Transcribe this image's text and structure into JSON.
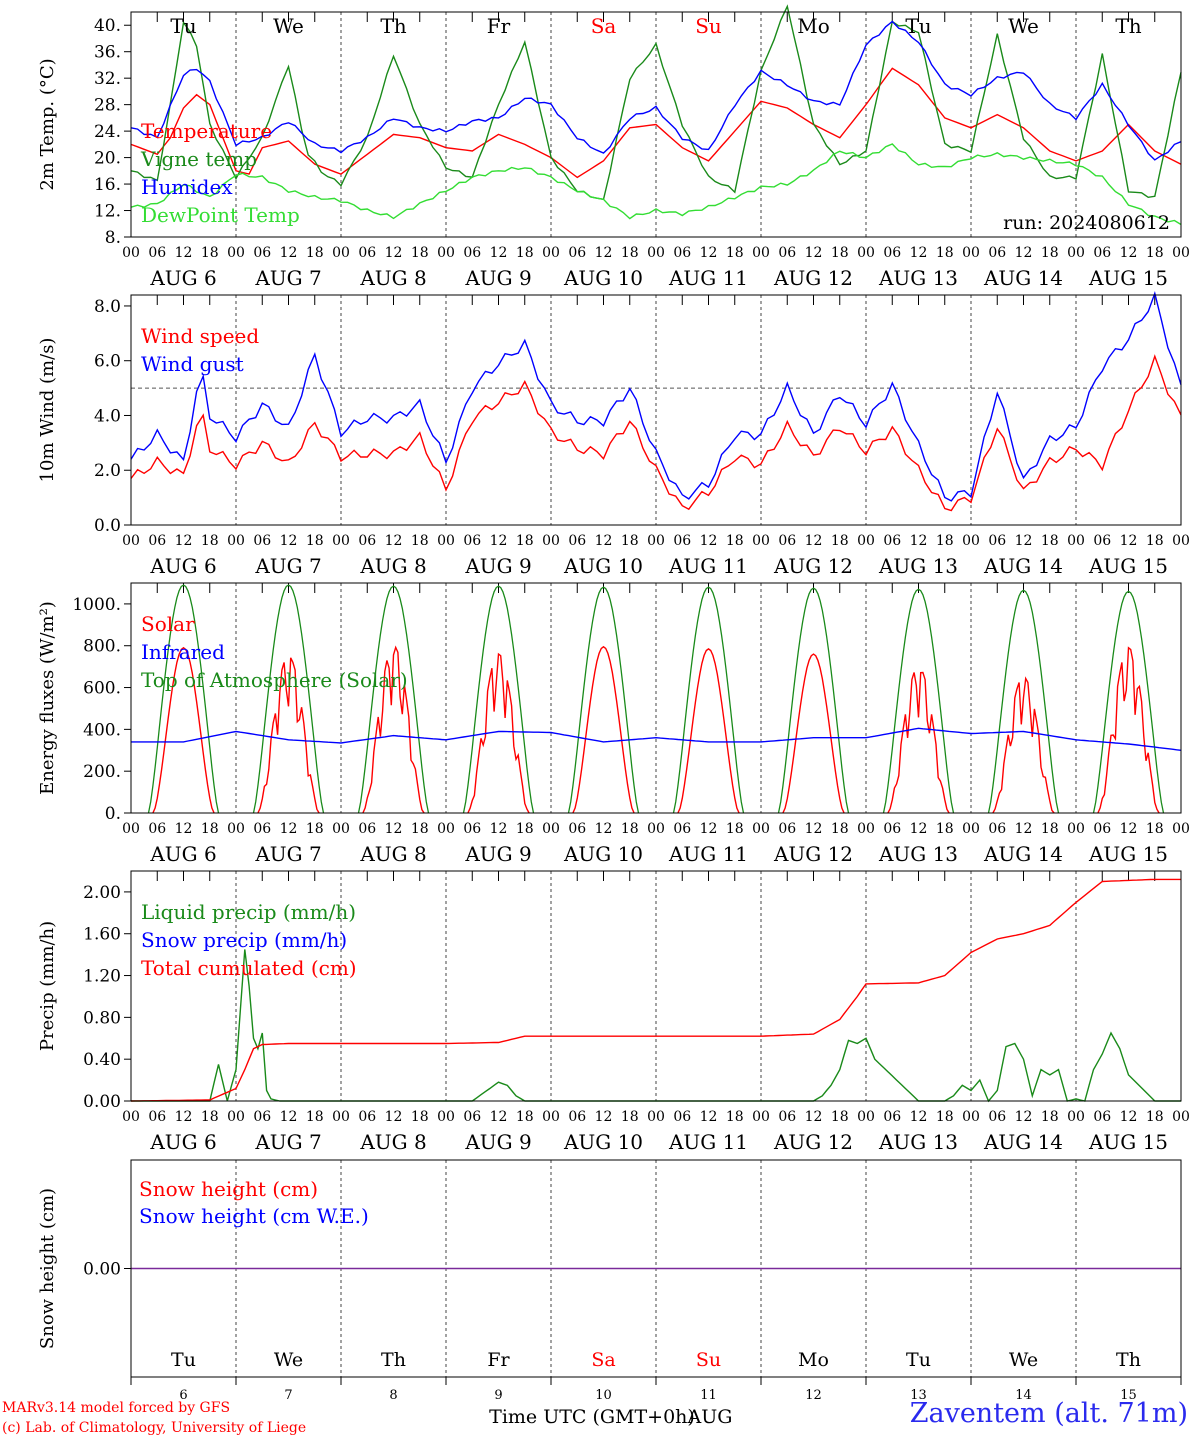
{
  "header": {
    "run_label": "run: 2024080612"
  },
  "footer": {
    "model_credit": "MARv3.14 model forced by GFS",
    "lab_credit": "(c) Lab. of Climatology, University of Liege",
    "time_label": "Time UTC (GMT+0h)",
    "month_label": "AUG",
    "station": "Zaventem (alt. 71m)"
  },
  "colors": {
    "red": "#ff0000",
    "darkgreen": "#1a8a1a",
    "blue": "#0000ff",
    "lightgreen": "#33dd33",
    "purple": "#7a2a9a",
    "weekend": "#ff0000",
    "weekday": "#000000"
  },
  "days": [
    {
      "weekday": "Tu",
      "date": "AUG 6",
      "num": "6",
      "weekend": false
    },
    {
      "weekday": "We",
      "date": "AUG 7",
      "num": "7",
      "weekend": false
    },
    {
      "weekday": "Th",
      "date": "AUG 8",
      "num": "8",
      "weekend": false
    },
    {
      "weekday": "Fr",
      "date": "AUG 9",
      "num": "9",
      "weekend": false
    },
    {
      "weekday": "Sa",
      "date": "AUG 10",
      "num": "10",
      "weekend": true
    },
    {
      "weekday": "Su",
      "date": "AUG 11",
      "num": "11",
      "weekend": true
    },
    {
      "weekday": "Mo",
      "date": "AUG 12",
      "num": "12",
      "weekend": false
    },
    {
      "weekday": "Tu",
      "date": "AUG 13",
      "num": "13",
      "weekend": false
    },
    {
      "weekday": "We",
      "date": "AUG 14",
      "num": "14",
      "weekend": false
    },
    {
      "weekday": "Th",
      "date": "AUG 15",
      "num": "15",
      "weekend": false
    }
  ],
  "hour_ticks": [
    "00",
    "06",
    "12",
    "18"
  ],
  "chart_data": [
    {
      "type": "line",
      "id": "temp",
      "ylabel": "2m Temp. (°C)",
      "ylim": [
        8,
        42
      ],
      "yticks": [
        8,
        12,
        16,
        20,
        24,
        28,
        32,
        36,
        40
      ],
      "ytick_labels": [
        "8.",
        "12.",
        "16.",
        "20.",
        "24.",
        "28.",
        "32.",
        "36.",
        "40."
      ],
      "legend": [
        {
          "name": "Temperature",
          "color": "red"
        },
        {
          "name": "Vigne temp",
          "color": "darkgreen"
        },
        {
          "name": "Humidex",
          "color": "blue"
        },
        {
          "name": "DewPoint Temp",
          "color": "lightgreen"
        }
      ],
      "series": [
        {
          "name": "Temperature",
          "color": "red",
          "x": [
            0,
            6,
            9,
            12,
            15,
            18,
            24,
            27,
            30,
            36,
            42,
            48,
            54,
            60,
            66,
            72,
            78,
            84,
            90,
            96,
            102,
            108,
            114,
            120,
            126,
            132,
            138,
            144,
            150,
            156,
            162,
            168,
            174,
            180,
            186,
            192,
            198,
            204,
            210,
            216,
            222,
            228,
            234,
            240
          ],
          "y": [
            22,
            20.5,
            23,
            27.5,
            29.5,
            28,
            18,
            17.5,
            21.5,
            22.5,
            19,
            17.5,
            20.5,
            23.5,
            23,
            21.5,
            21,
            23.5,
            22,
            20,
            17,
            19.5,
            24.5,
            25,
            21.5,
            19.5,
            24,
            28.5,
            27.5,
            25,
            23,
            28,
            33.5,
            31,
            26,
            24.5,
            26.5,
            24.5,
            21,
            19.5,
            21,
            25,
            21,
            19
          ]
        },
        {
          "name": "Vigne temp",
          "color": "darkgreen",
          "x": [
            0,
            6,
            9,
            12,
            15,
            18,
            24,
            30,
            36,
            40,
            44,
            48,
            54,
            60,
            66,
            72,
            78,
            84,
            90,
            96,
            102,
            108,
            114,
            120,
            126,
            132,
            138,
            144,
            150,
            156,
            162,
            168,
            174,
            180,
            186,
            192,
            198,
            204,
            210,
            216,
            222,
            228,
            234,
            240
          ],
          "y": [
            18,
            16.5,
            28,
            40.5,
            37,
            25,
            17,
            23,
            34,
            21,
            17.5,
            16,
            23,
            35.5,
            25,
            18.5,
            17,
            28,
            37.5,
            20,
            15,
            13.5,
            32,
            37,
            25,
            17,
            15,
            33,
            43,
            25,
            19,
            21,
            40.5,
            39,
            22,
            21,
            38.5,
            23,
            17,
            17,
            35.5,
            15,
            14,
            33
          ]
        },
        {
          "name": "Humidex",
          "color": "blue",
          "x": [
            0,
            6,
            12,
            15,
            18,
            24,
            30,
            36,
            42,
            48,
            54,
            60,
            66,
            72,
            78,
            84,
            90,
            96,
            102,
            108,
            114,
            120,
            126,
            132,
            138,
            144,
            150,
            156,
            162,
            168,
            174,
            180,
            186,
            192,
            198,
            204,
            210,
            216,
            222,
            228,
            234,
            240
          ],
          "y": [
            24.5,
            23,
            32.5,
            33.5,
            31.5,
            22,
            23,
            25.5,
            22,
            21,
            23,
            26,
            24.5,
            24,
            25.5,
            26,
            29,
            28,
            23,
            20.5,
            26,
            27.5,
            23,
            21,
            28,
            33,
            31,
            28.5,
            28,
            37,
            40.5,
            37.5,
            31,
            29.5,
            32,
            33,
            28,
            26,
            31,
            25,
            19.5,
            22.5
          ]
        },
        {
          "name": "DewPoint Temp",
          "color": "lightgreen",
          "x": [
            0,
            6,
            12,
            18,
            24,
            30,
            36,
            42,
            48,
            54,
            60,
            66,
            72,
            78,
            84,
            90,
            96,
            102,
            108,
            114,
            120,
            126,
            132,
            138,
            144,
            150,
            156,
            162,
            168,
            174,
            180,
            186,
            192,
            198,
            204,
            210,
            216,
            222,
            228,
            234,
            240
          ],
          "y": [
            12.5,
            13,
            16,
            14,
            17.5,
            17,
            15,
            14,
            13.5,
            12,
            11,
            13,
            15,
            17,
            18,
            18.5,
            17,
            15,
            13.5,
            11,
            12,
            11.5,
            12.5,
            14,
            15.5,
            16,
            18,
            21,
            20,
            22,
            19,
            18.5,
            20,
            20.5,
            20,
            19.5,
            19,
            17,
            13,
            11,
            10
          ]
        }
      ]
    },
    {
      "type": "line",
      "id": "wind",
      "ylabel": "10m Wind (m/s)",
      "ylim": [
        0,
        8.4
      ],
      "yticks": [
        0,
        2,
        4,
        6,
        8
      ],
      "ytick_labels": [
        "0.0",
        "2.0",
        "4.0",
        "6.0",
        "8.0"
      ],
      "reference_line": 5,
      "legend": [
        {
          "name": "Wind speed",
          "color": "red"
        },
        {
          "name": "Wind gust",
          "color": "blue"
        }
      ],
      "series": [
        {
          "name": "Wind speed",
          "color": "red",
          "x": [
            0,
            6,
            12,
            16,
            18,
            24,
            30,
            36,
            42,
            48,
            54,
            60,
            66,
            72,
            78,
            84,
            90,
            96,
            102,
            108,
            114,
            120,
            126,
            132,
            138,
            144,
            150,
            156,
            162,
            168,
            174,
            180,
            186,
            192,
            198,
            204,
            210,
            216,
            222,
            228,
            234,
            240
          ],
          "y": [
            1.7,
            2.3,
            1.8,
            4.2,
            2.8,
            2.2,
            3,
            2.2,
            3.7,
            2.5,
            2.6,
            2.6,
            3.2,
            1.3,
            3.9,
            4.5,
            5.1,
            3.4,
            2.8,
            2.6,
            3.8,
            2,
            0.6,
            1.2,
            2.5,
            2.2,
            3.6,
            2.5,
            3.6,
            2.7,
            3.5,
            2,
            0.6,
            1,
            3.6,
            1.2,
            2.3,
            2.8,
            2.2,
            4.2,
            6,
            3.9
          ]
        },
        {
          "name": "Wind gust",
          "color": "blue",
          "x": [
            0,
            6,
            12,
            16,
            18,
            24,
            30,
            36,
            42,
            48,
            54,
            60,
            66,
            72,
            78,
            84,
            90,
            96,
            102,
            108,
            114,
            120,
            126,
            132,
            138,
            144,
            150,
            156,
            162,
            168,
            174,
            180,
            186,
            192,
            198,
            204,
            210,
            216,
            222,
            228,
            234,
            240
          ],
          "y": [
            2.4,
            3.3,
            2.3,
            5.7,
            4,
            3.2,
            4.4,
            3.5,
            6.2,
            3.4,
            3.9,
            3.9,
            4.4,
            2.3,
            5,
            5.9,
            6.6,
            4.4,
            3.8,
            3.8,
            5,
            2.6,
            1,
            1.5,
            3.3,
            3.3,
            5,
            3.3,
            4.8,
            3.7,
            5.1,
            2.9,
            1,
            1.2,
            4.9,
            1.6,
            3.1,
            3.6,
            5.8,
            6.8,
            8.3,
            5
          ]
        }
      ]
    },
    {
      "type": "line",
      "id": "energy",
      "ylabel": "Energy fluxes (W/m²)",
      "ylim": [
        0,
        1100
      ],
      "yticks": [
        0,
        200,
        400,
        600,
        800,
        1000
      ],
      "ytick_labels": [
        "0.",
        "200.",
        "400.",
        "600.",
        "800.",
        "1000."
      ],
      "legend": [
        {
          "name": "Solar",
          "color": "red"
        },
        {
          "name": "Infrared",
          "color": "blue"
        },
        {
          "name": "Top of Atmosphere (Solar)",
          "color": "darkgreen"
        }
      ],
      "toa_peaks": [
        1090,
        1090,
        1085,
        1085,
        1080,
        1080,
        1075,
        1070,
        1065,
        1060
      ],
      "solar_peaks": [
        790,
        750,
        800,
        760,
        795,
        785,
        760,
        700,
        650,
        790
      ],
      "series": [
        {
          "name": "Infrared",
          "color": "blue",
          "x": [
            0,
            12,
            24,
            36,
            48,
            60,
            72,
            84,
            96,
            108,
            120,
            132,
            144,
            156,
            168,
            180,
            192,
            204,
            216,
            228,
            240
          ],
          "y": [
            340,
            340,
            390,
            350,
            335,
            370,
            350,
            390,
            385,
            340,
            360,
            340,
            340,
            360,
            360,
            405,
            380,
            390,
            350,
            330,
            300
          ]
        }
      ]
    },
    {
      "type": "line",
      "id": "precip",
      "ylabel": "Precip (mm/h)",
      "ylim": [
        0,
        2.2
      ],
      "yticks": [
        0,
        0.4,
        0.8,
        1.2,
        1.6,
        2.0
      ],
      "ytick_labels": [
        "0.00",
        "0.40",
        "0.80",
        "1.20",
        "1.60",
        "2.00"
      ],
      "legend": [
        {
          "name": "Liquid precip (mm/h)",
          "color": "darkgreen"
        },
        {
          "name": "Snow precip (mm/h)",
          "color": "blue"
        },
        {
          "name": "Total cumulated (cm)",
          "color": "red"
        }
      ],
      "series": [
        {
          "name": "Liquid precip (mm/h)",
          "color": "darkgreen",
          "x": [
            0,
            18,
            20,
            22,
            24,
            26,
            27,
            28,
            29,
            30,
            31,
            32,
            34,
            36,
            40,
            78,
            84,
            86,
            88,
            90,
            92,
            120,
            150,
            156,
            158,
            160,
            162,
            164,
            166,
            168,
            170,
            180,
            186,
            188,
            190,
            192,
            194,
            196,
            198,
            200,
            202,
            204,
            206,
            208,
            210,
            212,
            214,
            216,
            218,
            220,
            222,
            224,
            226,
            228,
            234,
            240
          ],
          "y": [
            0,
            0,
            0.35,
            0,
            0.3,
            1.45,
            1.1,
            0.6,
            0.5,
            0.65,
            0.1,
            0.02,
            0,
            0,
            0,
            0,
            0.18,
            0.15,
            0.05,
            0,
            0,
            0,
            0,
            0,
            0.05,
            0.15,
            0.3,
            0.58,
            0.55,
            0.6,
            0.4,
            0,
            0,
            0.05,
            0.15,
            0.1,
            0.2,
            0,
            0.1,
            0.52,
            0.55,
            0.4,
            0.05,
            0.3,
            0.25,
            0.3,
            0,
            0.02,
            0,
            0.3,
            0.45,
            0.65,
            0.5,
            0.25,
            0,
            0
          ]
        },
        {
          "name": "Total cumulated (cm)",
          "color": "red",
          "x": [
            0,
            18,
            24,
            26,
            28,
            30,
            36,
            48,
            60,
            72,
            84,
            90,
            96,
            108,
            120,
            132,
            144,
            156,
            162,
            166,
            168,
            180,
            186,
            192,
            198,
            204,
            210,
            216,
            222,
            228,
            234,
            240
          ],
          "y": [
            0,
            0.01,
            0.12,
            0.3,
            0.5,
            0.54,
            0.55,
            0.55,
            0.55,
            0.55,
            0.56,
            0.62,
            0.62,
            0.62,
            0.62,
            0.62,
            0.62,
            0.64,
            0.78,
            1.0,
            1.12,
            1.13,
            1.2,
            1.42,
            1.55,
            1.6,
            1.68,
            1.9,
            2.1,
            2.11,
            2.12,
            2.12
          ]
        }
      ]
    },
    {
      "type": "line",
      "id": "snow",
      "ylabel": "Snow height (cm)",
      "ylim": [
        -1,
        1
      ],
      "yticks": [
        0
      ],
      "ytick_labels": [
        "0.00"
      ],
      "legend": [
        {
          "name": "Snow height (cm)",
          "color": "red"
        },
        {
          "name": "Snow height (cm W.E.)",
          "color": "blue"
        }
      ],
      "series": [
        {
          "name": "Snow height (cm)",
          "color": "purple",
          "x": [
            0,
            240
          ],
          "y": [
            0,
            0
          ]
        }
      ]
    }
  ]
}
